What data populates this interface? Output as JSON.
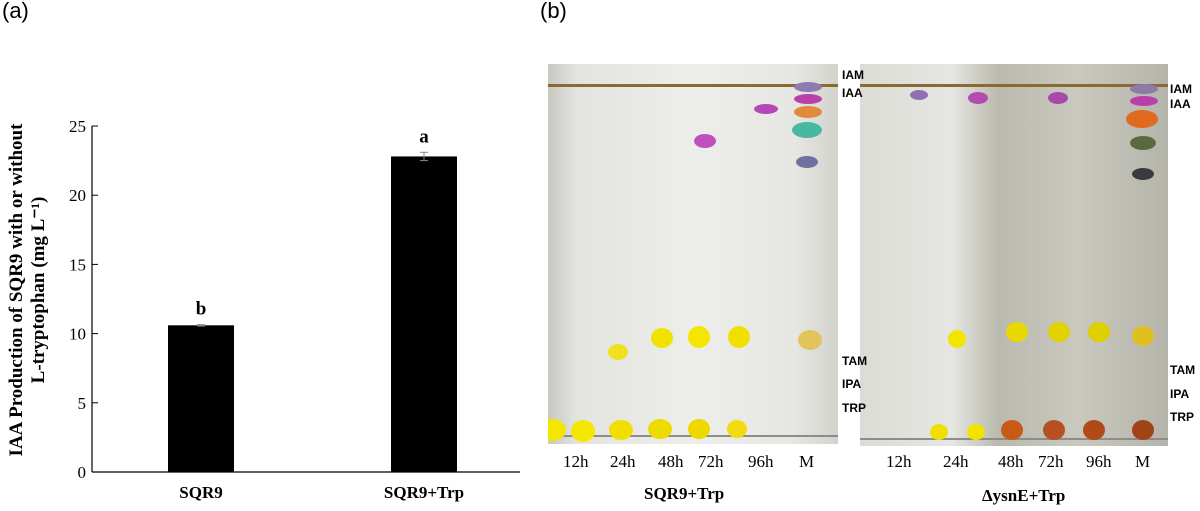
{
  "panels": {
    "a": "(a)",
    "b": "(b)"
  },
  "chart_data": {
    "type": "bar",
    "ylabel_line1": "IAA Production of SQR9 with or without",
    "ylabel_line2": "L-tryptophan (mg L⁻¹)",
    "ylim": [
      0,
      25
    ],
    "yticks": [
      0,
      5,
      10,
      15,
      20,
      25
    ],
    "categories": [
      "SQR9",
      "SQR9+Trp"
    ],
    "values": [
      10.6,
      22.8
    ],
    "errors": [
      0.05,
      0.3
    ],
    "significance": [
      "b",
      "a"
    ],
    "bar_color": "#000000"
  },
  "tlc": {
    "lanes": [
      "12h",
      "24h",
      "48h",
      "72h",
      "96h",
      "M"
    ],
    "plate1": {
      "title": "SQR9+Trp",
      "markers_top": [
        "IAM",
        "IAA"
      ],
      "markers_bottom": [
        "TAM",
        "IPA",
        "TRP"
      ]
    },
    "plate2": {
      "title": "ΔysnE+Trp",
      "markers_top": [
        "IAM",
        "IAA"
      ],
      "markers_bottom": [
        "TAM",
        "IPA",
        "TRP"
      ]
    }
  }
}
